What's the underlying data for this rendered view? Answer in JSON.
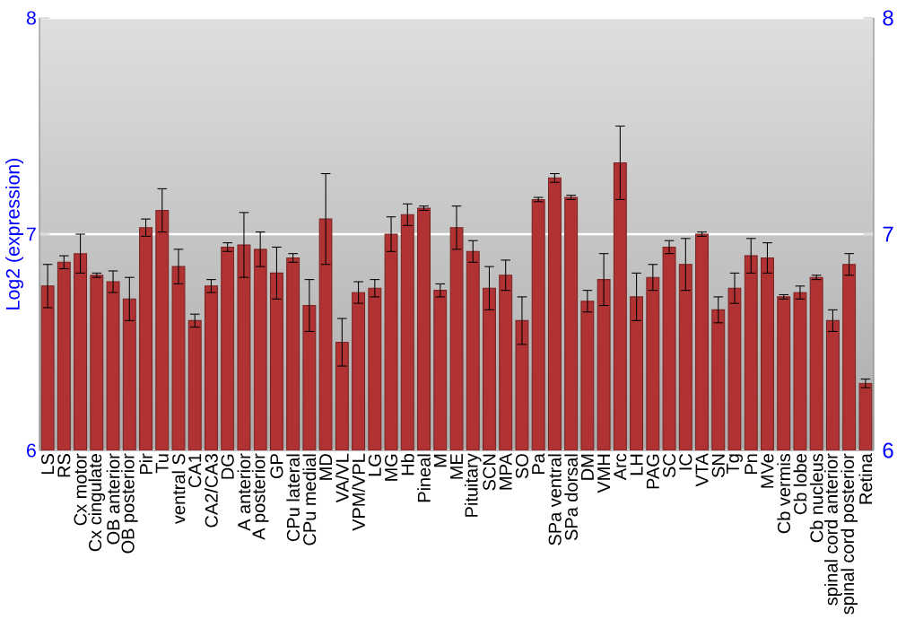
{
  "chart_data": {
    "type": "bar",
    "ylabel": "Log2 (expression)",
    "categories": [
      "LS",
      "RS",
      "Cx motor",
      "Cx cingulate",
      "OB anterior",
      "OB posterior",
      "Pir",
      "Tu",
      "ventral S",
      "CA1",
      "CA2/CA3",
      "DG",
      "A anterior",
      "A posterior",
      "GP",
      "CPu lateral",
      "CPu medial",
      "MD",
      "VA/VL",
      "VPM/VPL",
      "LG",
      "MG",
      "Hb",
      "Pineal",
      "M",
      "ME",
      "Pituitary",
      "SCN",
      "MPA",
      "SO",
      "Pa",
      "SPa ventral",
      "SPa dorsal",
      "DM",
      "VMH",
      "Arc",
      "LH",
      "PAG",
      "SC",
      "IC",
      "VTA",
      "SN",
      "Tg",
      "Pn",
      "MVe",
      "Cb vermis",
      "Cb lobe",
      "Cb nucleus",
      "spinal cord anterior",
      "spinal cord posterior",
      "Retina"
    ],
    "values": [
      6.76,
      6.87,
      6.91,
      6.81,
      6.78,
      6.7,
      7.03,
      7.11,
      6.85,
      6.6,
      6.76,
      6.94,
      6.95,
      6.93,
      6.82,
      6.89,
      6.67,
      7.07,
      6.5,
      6.73,
      6.75,
      7.0,
      7.09,
      7.12,
      6.74,
      7.03,
      6.92,
      6.75,
      6.81,
      6.6,
      7.16,
      7.26,
      7.17,
      6.69,
      6.79,
      7.33,
      6.71,
      6.8,
      6.94,
      6.86,
      7.0,
      6.65,
      6.75,
      6.9,
      6.89,
      6.71,
      6.73,
      6.8,
      6.6,
      6.86,
      6.31
    ],
    "errors": [
      0.1,
      0.03,
      0.09,
      0.01,
      0.05,
      0.1,
      0.04,
      0.1,
      0.08,
      0.03,
      0.03,
      0.02,
      0.15,
      0.08,
      0.12,
      0.02,
      0.12,
      0.21,
      0.11,
      0.05,
      0.04,
      0.08,
      0.05,
      0.01,
      0.03,
      0.1,
      0.05,
      0.1,
      0.07,
      0.11,
      0.01,
      0.02,
      0.01,
      0.05,
      0.12,
      0.17,
      0.11,
      0.06,
      0.03,
      0.12,
      0.01,
      0.06,
      0.07,
      0.08,
      0.07,
      0.01,
      0.03,
      0.01,
      0.05,
      0.05,
      0.02
    ],
    "color": "#b03232",
    "ylim": [
      6,
      8
    ],
    "yticks": [
      6,
      7,
      8
    ],
    "y2lim": [
      6,
      8
    ],
    "y2ticks": [
      6,
      7,
      8
    ],
    "grid": "y"
  }
}
